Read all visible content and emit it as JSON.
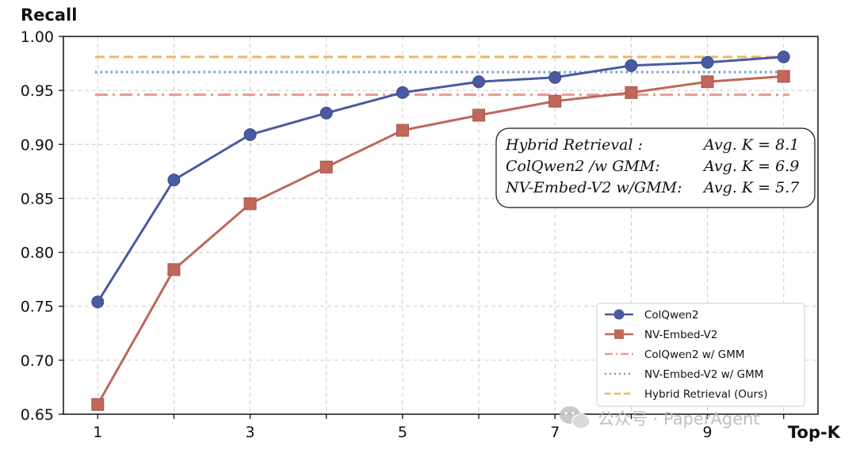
{
  "chart_data": {
    "type": "line",
    "title": "",
    "xlabel": "Top-K",
    "ylabel": "Recall",
    "x": [
      1,
      2,
      3,
      4,
      5,
      6,
      7,
      8,
      9,
      10
    ],
    "xlim": [
      0.55,
      10.45
    ],
    "ylim": [
      0.65,
      1.0
    ],
    "x_tick_labels": [
      "1",
      "3",
      "5",
      "7",
      "9"
    ],
    "x_tick_values": [
      1,
      3,
      5,
      7,
      9
    ],
    "y_ticks": [
      "0.65",
      "0.70",
      "0.75",
      "0.80",
      "0.85",
      "0.90",
      "0.95",
      "1.00"
    ],
    "grid": true,
    "legend_position": "bottom-right",
    "series": [
      {
        "name": "ColQwen2",
        "style": "line-marker-circle",
        "color": "#4a5aa0",
        "values": [
          0.754,
          0.867,
          0.909,
          0.929,
          0.948,
          0.958,
          0.962,
          0.973,
          0.976,
          0.981
        ]
      },
      {
        "name": "NV-Embed-V2",
        "style": "line-marker-square",
        "color": "#c0675a",
        "values": [
          0.659,
          0.784,
          0.845,
          0.879,
          0.913,
          0.927,
          0.94,
          0.948,
          0.958,
          0.963
        ]
      }
    ],
    "reference_lines": [
      {
        "name": "ColQwen2 w/ GMM",
        "style": "dashdot",
        "color": "#e89a90",
        "value": 0.946
      },
      {
        "name": "NV-Embed-V2 w/ GMM",
        "style": "dotted",
        "color": "#6f9cc7",
        "value": 0.967
      },
      {
        "name": "Hybrid Retrieval (Ours)",
        "style": "dashed",
        "color": "#f0b468",
        "value": 0.981
      }
    ],
    "annotation": [
      {
        "label": "Hybrid Retrieval :",
        "value": "Avg. K = 8.1"
      },
      {
        "label": "ColQwen2 /w GMM:",
        "value": "Avg. K = 6.9"
      },
      {
        "label": "NV-Embed-V2 w/GMM:",
        "value": "Avg. K = 5.7"
      }
    ]
  },
  "watermark": "公众号 · PaperAgent",
  "icons": {
    "watermark": "wechat-icon"
  }
}
